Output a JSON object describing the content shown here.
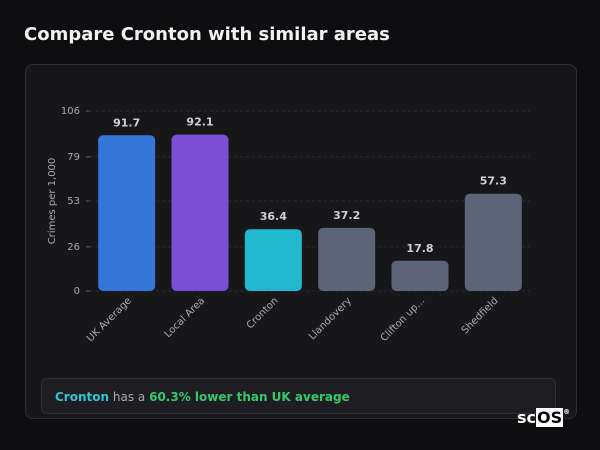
{
  "header": {
    "title": "Compare Cronton with similar areas"
  },
  "chart_data": {
    "type": "bar",
    "y_axis_label": "Crimes per 1,000",
    "categories": [
      "UK Average",
      "Local Area",
      "Cronton",
      "Llandovery",
      "Clifton up...",
      "Shedfield"
    ],
    "values": [
      91.7,
      92.1,
      36.4,
      37.2,
      17.8,
      57.3
    ],
    "colors": [
      "#3577d9",
      "#7a4fd6",
      "#22b9d0",
      "#5b6577",
      "#5b6577",
      "#5b6577"
    ],
    "ylim": [
      0,
      106
    ],
    "yticks": [
      0,
      26,
      53,
      79,
      106
    ],
    "grid": true
  },
  "footer": {
    "place": "Cronton",
    "text": "has a",
    "highlight": "60.3% lower than UK average"
  },
  "logo": {
    "left": "sc",
    "box": "OS",
    "mark": "®"
  }
}
